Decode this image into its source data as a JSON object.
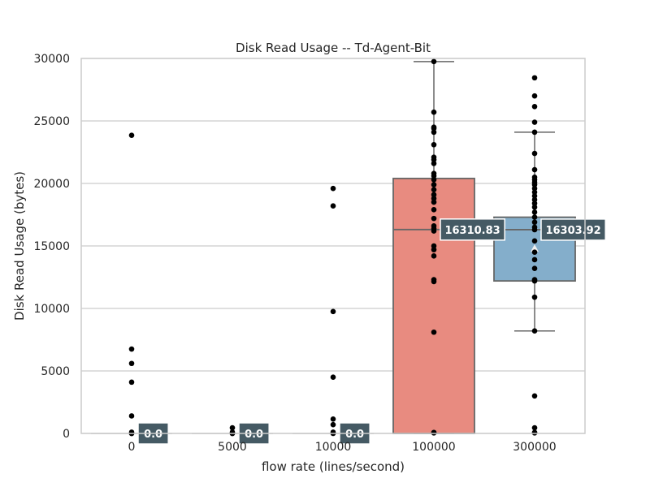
{
  "chart_data": {
    "type": "box",
    "title": "Disk Read Usage -- Td-Agent-Bit",
    "xlabel": "flow rate (lines/second)",
    "ylabel": "Disk Read Usage (bytes)",
    "categories": [
      "0",
      "5000",
      "10000",
      "100000",
      "300000"
    ],
    "ylim": [
      0,
      30000
    ],
    "yticks": [
      0,
      5000,
      10000,
      15000,
      20000,
      25000,
      30000
    ],
    "grid": true,
    "boxes": [
      {
        "category": "0",
        "q1": 0,
        "median": 0,
        "q3": 0,
        "whisker_low": 0,
        "whisker_high": 0,
        "mean": 0,
        "color": "#e8e8e8",
        "box_visible": false,
        "points": [
          23850,
          6750,
          5600,
          4100,
          1400,
          100,
          0,
          0
        ],
        "annotation": "0.0"
      },
      {
        "category": "5000",
        "q1": 0,
        "median": 0,
        "q3": 0,
        "whisker_low": 0,
        "whisker_high": 0,
        "mean": 0,
        "color": "#e8e8e8",
        "box_visible": false,
        "points": [
          450,
          100,
          0,
          0
        ],
        "annotation": "0.0"
      },
      {
        "category": "10000",
        "q1": 0,
        "median": 0,
        "q3": 0,
        "whisker_low": 0,
        "whisker_high": 0,
        "mean": 0,
        "color": "#e8e8e8",
        "box_visible": false,
        "points": [
          19600,
          18200,
          9750,
          4500,
          1150,
          700,
          100,
          0
        ],
        "annotation": "0.0"
      },
      {
        "category": "100000",
        "q1": 0,
        "median": 16310.83,
        "q3": 20400,
        "whisker_low": 0,
        "whisker_high": 29750,
        "mean": 16310.83,
        "color": "#e88b80",
        "box_visible": true,
        "points": [
          29750,
          25700,
          24500,
          24400,
          24100,
          23100,
          22100,
          21900,
          21600,
          20800,
          20600,
          20300,
          19900,
          19500,
          19100,
          18800,
          18500,
          17900,
          17200,
          16600,
          16400,
          16200,
          15000,
          14700,
          14200,
          12300,
          12150,
          8100,
          80,
          40
        ],
        "annotation": "16310.83"
      },
      {
        "category": "300000",
        "q1": 12200,
        "median": 16303.92,
        "q3": 17300,
        "whisker_low": 8200,
        "whisker_high": 24100,
        "mean": 14800,
        "color": "#84aecb",
        "box_visible": true,
        "points": [
          28450,
          27000,
          26150,
          24900,
          24100,
          22400,
          21100,
          20500,
          20300,
          20100,
          19900,
          19600,
          19300,
          19000,
          18700,
          18400,
          18100,
          17700,
          17300,
          16900,
          16500,
          16300,
          15400,
          14500,
          13900,
          13200,
          12300,
          12200,
          10900,
          8200,
          3000,
          450,
          80,
          40
        ],
        "annotation": "16303.92"
      }
    ]
  }
}
